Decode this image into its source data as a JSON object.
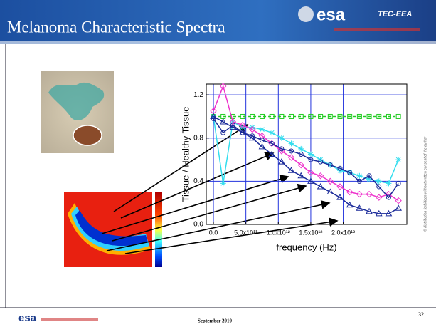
{
  "slide": {
    "title": "Melanoma Characteristic Spectra",
    "logo": "esa",
    "division": "TEC-EEA",
    "footer_logo": "esa",
    "date": "September 2010",
    "page_number": "32",
    "copyright": "© distribution forbidden without written consent of the author"
  },
  "chart_data": {
    "type": "line",
    "x": [
      0,
      150000000000,
      300000000000,
      450000000000,
      600000000000,
      750000000000,
      900000000000,
      1050000000000,
      1200000000000,
      1350000000000,
      1500000000000,
      1650000000000,
      1800000000000,
      1950000000000,
      2100000000000,
      2250000000000,
      2400000000000,
      2550000000000,
      2700000000000,
      2850000000000
    ],
    "series": [
      {
        "color": "#22cc22",
        "marker": "square",
        "dash": true,
        "values": [
          1.0,
          1.0,
          1.0,
          1.0,
          1.0,
          1.0,
          1.0,
          1.0,
          1.0,
          1.0,
          1.0,
          1.0,
          1.0,
          1.0,
          1.0,
          1.0,
          1.0,
          1.0,
          1.0,
          1.0
        ]
      },
      {
        "color": "#33ddee",
        "marker": "star",
        "values": [
          1.0,
          0.38,
          0.95,
          0.9,
          0.9,
          0.88,
          0.85,
          0.8,
          0.75,
          0.7,
          0.65,
          0.6,
          0.55,
          0.5,
          0.48,
          0.45,
          0.42,
          0.4,
          0.38,
          0.6
        ]
      },
      {
        "color": "#ee33cc",
        "marker": "diamond",
        "values": [
          1.05,
          1.28,
          0.95,
          0.92,
          0.88,
          0.82,
          0.75,
          0.68,
          0.62,
          0.55,
          0.48,
          0.45,
          0.4,
          0.35,
          0.3,
          0.28,
          0.28,
          0.25,
          0.28,
          0.22
        ]
      },
      {
        "color": "#1a2a99",
        "marker": "circle",
        "values": [
          0.98,
          0.85,
          0.92,
          0.85,
          0.82,
          0.78,
          0.75,
          0.7,
          0.68,
          0.65,
          0.6,
          0.58,
          0.55,
          0.52,
          0.48,
          0.4,
          0.45,
          0.35,
          0.25,
          0.38
        ]
      },
      {
        "color": "#1a2a99",
        "marker": "triangle",
        "values": [
          1.0,
          0.95,
          0.9,
          0.85,
          0.8,
          0.72,
          0.65,
          0.58,
          0.5,
          0.45,
          0.4,
          0.35,
          0.3,
          0.25,
          0.18,
          0.15,
          0.12,
          0.1,
          0.1,
          0.15
        ]
      }
    ],
    "xlabel": "frequency  (Hz)",
    "ylabel": "Tissue / Healthy Tissue",
    "xlim": [
      -110000000000,
      2980000000000
    ],
    "ylim": [
      0,
      1.3
    ],
    "xticks": [
      {
        "value": 0,
        "label": "0.0"
      },
      {
        "value": 500000000000,
        "label": "5.0x10¹¹"
      },
      {
        "value": 1000000000000,
        "label": "1.0x10¹²"
      },
      {
        "value": 1500000000000,
        "label": "1.5x10¹²"
      },
      {
        "value": 2000000000000,
        "label": "2.0x10¹²"
      }
    ],
    "yticks": [
      {
        "value": 0,
        "label": "0.0"
      },
      0.4,
      0.8,
      1.2
    ],
    "grid": true,
    "grid_color": "#2233dd"
  }
}
